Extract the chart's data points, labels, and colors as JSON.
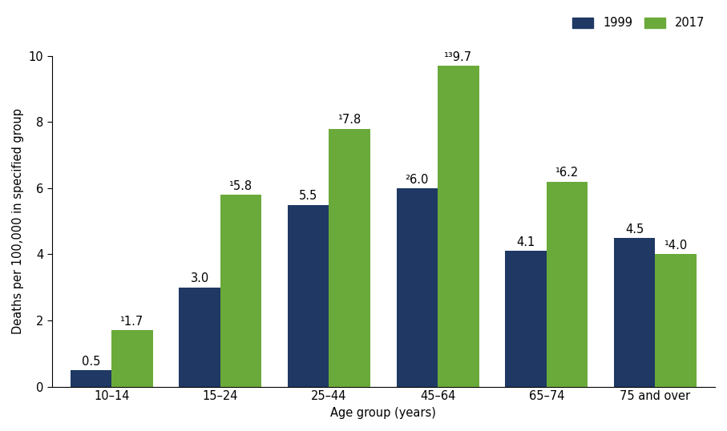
{
  "categories": [
    "10–14",
    "15–24",
    "25–44",
    "45–64",
    "65–74",
    "75 and over"
  ],
  "values_1999": [
    0.5,
    3.0,
    5.5,
    6.0,
    4.1,
    4.5
  ],
  "values_2017": [
    1.7,
    5.8,
    7.8,
    9.7,
    6.2,
    4.0
  ],
  "labels_1999": [
    "0.5",
    "3.0",
    "5.5",
    "²6.0",
    "4.1",
    "4.5"
  ],
  "labels_2017": [
    "¹1.7",
    "¹5.8",
    "¹7.8",
    "¹³9.7",
    "¹6.2",
    "¹4.0"
  ],
  "color_1999": "#1f3864",
  "color_2017": "#6aaa3a",
  "bar_width": 0.38,
  "ylim": [
    0,
    10
  ],
  "yticks": [
    0,
    2,
    4,
    6,
    8,
    10
  ],
  "xlabel": "Age group (years)",
  "ylabel": "Deaths per 100,000 in specified group",
  "legend_labels": [
    "1999",
    "2017"
  ],
  "label_fontsize": 10.5,
  "tick_fontsize": 10.5,
  "background_color": "#ffffff"
}
